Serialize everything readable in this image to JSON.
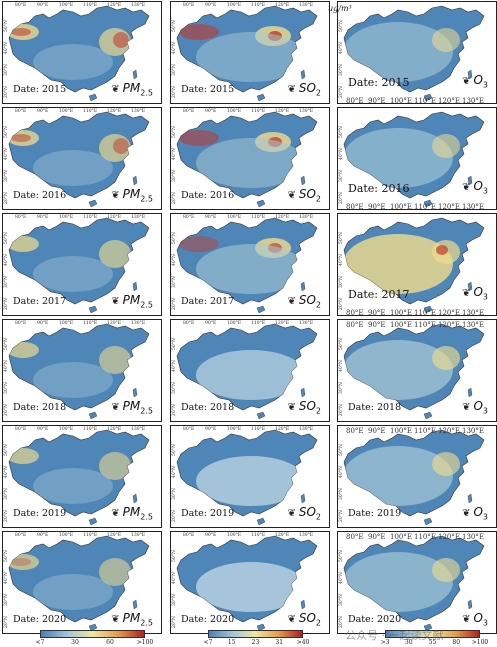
{
  "rows": [
    {
      "date": "Date: 2015"
    },
    {
      "date": "Date: 2016"
    },
    {
      "date": "Date: 2017"
    },
    {
      "date": "Date: 2018"
    },
    {
      "date": "Date: 2019"
    },
    {
      "date": "Date: 2020"
    }
  ],
  "columns": [
    {
      "pollutant": "PM",
      "sub": "2.5",
      "intensity": [
        0.55,
        0.5,
        0.42,
        0.35,
        0.32,
        0.3
      ]
    },
    {
      "pollutant": "SO",
      "sub": "2",
      "intensity": [
        0.6,
        0.55,
        0.45,
        0.3,
        0.2,
        0.15
      ]
    },
    {
      "pollutant": "O",
      "sub": "3",
      "intensity": [
        0.3,
        0.32,
        0.5,
        0.42,
        0.4,
        0.38
      ]
    }
  ],
  "lat_ticks": [
    "50°N",
    "40°N",
    "30°N",
    "20°N"
  ],
  "lon_ticks_small": [
    "80°E",
    "90°E",
    "100°E",
    "110°E",
    "120°E",
    "130°E"
  ],
  "lon_ticks_big": [
    "80°E",
    "90°E",
    "100°E",
    "110°E",
    "120°E",
    "130°E"
  ],
  "legends": [
    {
      "name": "pm25",
      "ticks": [
        "<7",
        "30",
        "60",
        ">100"
      ],
      "colors": [
        "#4a7fb5",
        "#9fc3d9",
        "#f2e6a0",
        "#e59a4d",
        "#b3201a"
      ]
    },
    {
      "name": "so2",
      "ticks": [
        "<7",
        "15",
        "23",
        "31",
        ">40"
      ],
      "colors": [
        "#4a7fb5",
        "#9fc3d9",
        "#f2e6a0",
        "#e59a4d",
        "#b3201a"
      ]
    },
    {
      "name": "o3",
      "ticks": [
        ">3",
        "30",
        "55",
        "80",
        ">100"
      ],
      "colors": [
        "#4a7fb5",
        "#9fc3d9",
        "#f2e6a0",
        "#e59a4d",
        "#b3201a"
      ]
    }
  ],
  "unit": "ug/m³",
  "watermark": "公众号 · 一起读文献",
  "colors": {
    "land_low": "#4f86b8",
    "land_mid": "#a7c9d6",
    "land_high": "#f0dc8c",
    "hot": "#c0392b",
    "sea": "#ffffff"
  }
}
